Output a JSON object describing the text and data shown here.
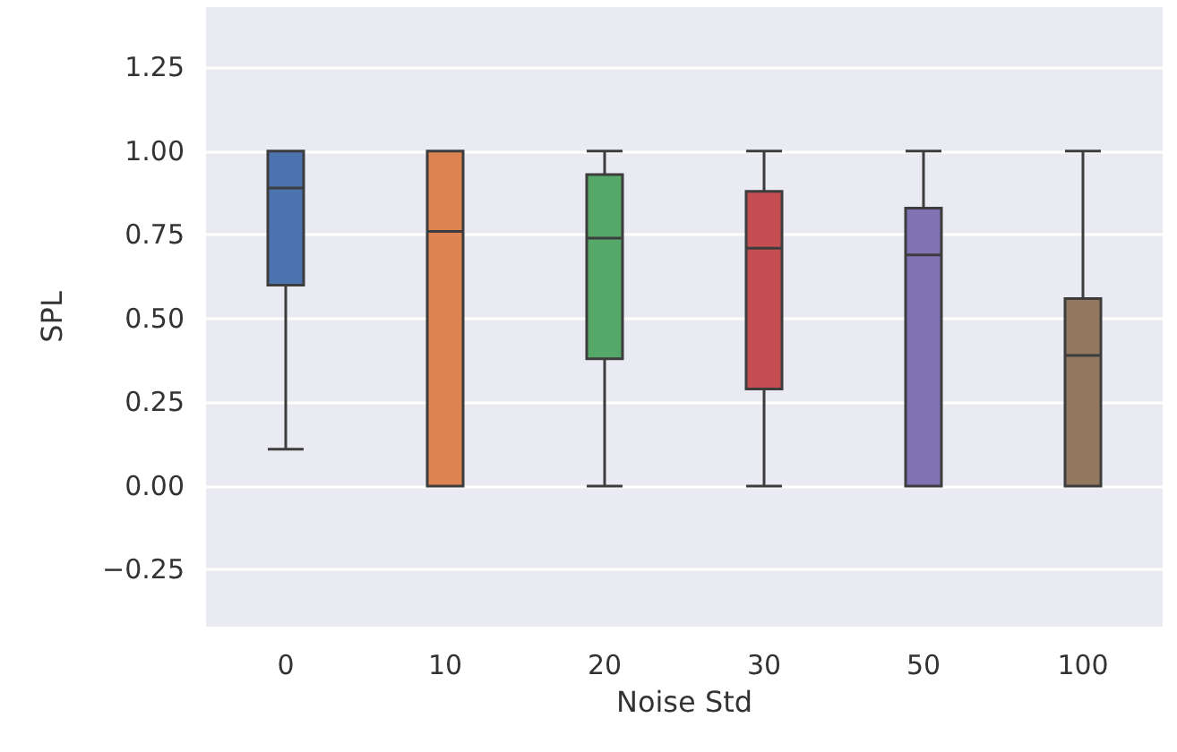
{
  "chart_data": {
    "type": "box",
    "xlabel": "Noise Std",
    "ylabel": "SPL",
    "categories": [
      "0",
      "10",
      "20",
      "30",
      "50",
      "100"
    ],
    "colors": [
      "#4c72b0",
      "#dd8452",
      "#55a868",
      "#c44e52",
      "#8172b3",
      "#937860"
    ],
    "boxes": [
      {
        "low": 0.11,
        "q1": 0.6,
        "median": 0.89,
        "q3": 1.0,
        "high": 1.0
      },
      {
        "low": 0.0,
        "q1": 0.0,
        "median": 0.76,
        "q3": 1.0,
        "high": 1.0
      },
      {
        "low": 0.0,
        "q1": 0.38,
        "median": 0.74,
        "q3": 0.93,
        "high": 1.0
      },
      {
        "low": 0.0,
        "q1": 0.29,
        "median": 0.71,
        "q3": 0.88,
        "high": 1.0
      },
      {
        "low": 0.0,
        "q1": 0.0,
        "median": 0.69,
        "q3": 0.83,
        "high": 1.0
      },
      {
        "low": 0.0,
        "q1": 0.0,
        "median": 0.39,
        "q3": 0.56,
        "high": 1.0
      }
    ],
    "ylim": [
      -0.42,
      1.43
    ],
    "yticks": [
      {
        "value": -0.25,
        "label": "−0.25"
      },
      {
        "value": 0,
        "label": "0.00"
      },
      {
        "value": 0.25,
        "label": "0.25"
      },
      {
        "value": 0.5,
        "label": "0.50"
      },
      {
        "value": 0.75,
        "label": "0.75"
      },
      {
        "value": 1,
        "label": "1.00"
      },
      {
        "value": 1.25,
        "label": "1.25"
      }
    ],
    "grid": "y"
  }
}
